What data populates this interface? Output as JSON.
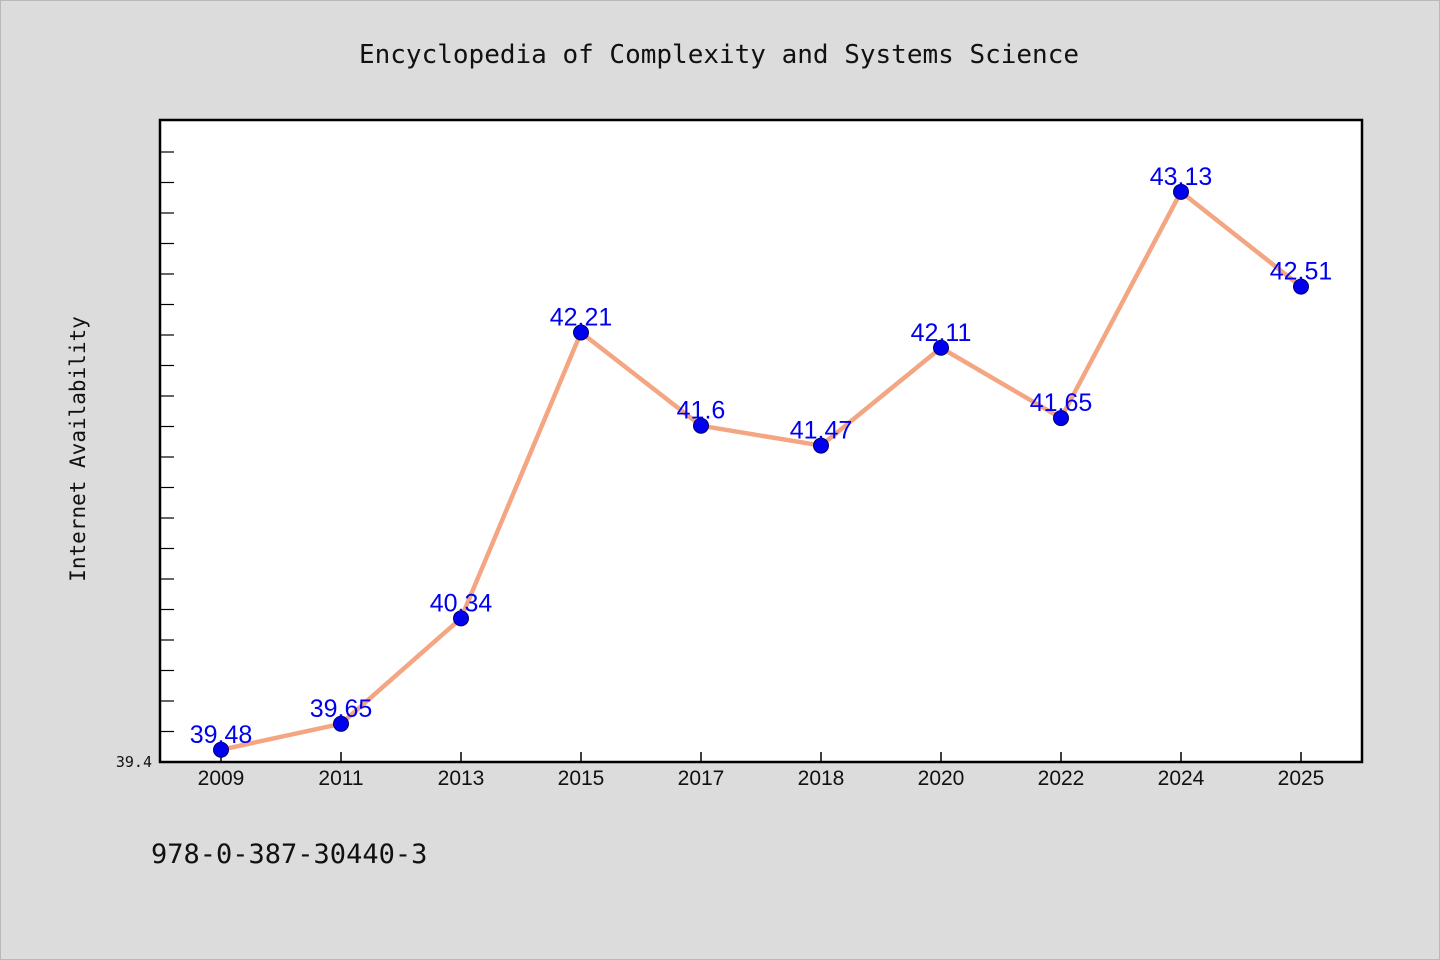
{
  "chart_data": {
    "type": "line",
    "title": "Encyclopedia of Complexity and Systems Science",
    "xlabel": "",
    "ylabel": "Internet Availability",
    "categories": [
      "2009",
      "2011",
      "2013",
      "2015",
      "2017",
      "2018",
      "2020",
      "2022",
      "2024",
      "2025"
    ],
    "series": [
      {
        "values": [
          39.48,
          39.65,
          40.34,
          42.21,
          41.6,
          41.47,
          42.11,
          41.65,
          43.13,
          42.51
        ],
        "labels": [
          "39.48",
          "39.65",
          "40.34",
          "42.21",
          "41.6",
          "41.47",
          "42.11",
          "41.65",
          "43.13",
          "42.51"
        ]
      }
    ],
    "ylim": [
      39.4,
      43.6
    ],
    "yticks": [
      "39.4"
    ],
    "grid": false,
    "legend": "none",
    "colors": {
      "line": "#f4a582",
      "marker": "#0000ee",
      "data_label": "#0000ee",
      "plot_bg": "#ffffff",
      "page_bg": "#dcdcdc",
      "axis": "#000000"
    }
  },
  "footer": {
    "isbn": "978-0-387-30440-3"
  }
}
